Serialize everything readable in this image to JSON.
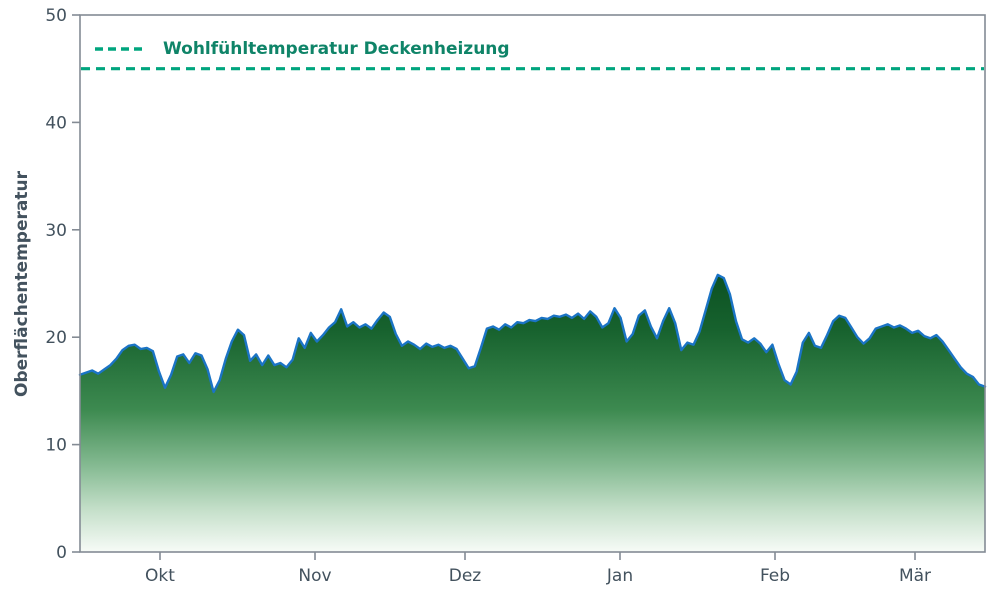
{
  "colors": {
    "background": "#ffffff",
    "axis_text": "#43525e",
    "legend_text": "#0f8468",
    "spine": "#848b94",
    "gradient_stops": [
      "#0a4f21",
      "#17622e",
      "#3d8a50",
      "#86bb93",
      "#c4dfc9",
      "#f7fbf7"
    ]
  },
  "chart_data": {
    "type": "area",
    "title": "",
    "xlabel": "",
    "ylabel": "Oberflächentemperatur",
    "ylim": [
      0,
      50
    ],
    "yticks": [
      0,
      10,
      20,
      30,
      40,
      50
    ],
    "xlim_days": [
      0,
      181
    ],
    "xticks": [
      {
        "label": "Okt",
        "day": 16
      },
      {
        "label": "Nov",
        "day": 47
      },
      {
        "label": "Dez",
        "day": 77
      },
      {
        "label": "Jan",
        "day": 108
      },
      {
        "label": "Feb",
        "day": 139
      },
      {
        "label": "Mär",
        "day": 167
      }
    ],
    "grid": false,
    "legend_position": "upper left",
    "threshold": {
      "label": "Wohlfühltemperatur Deckenheizung",
      "value": 45,
      "color": "#00a57e",
      "style": "dashed"
    },
    "series": [
      {
        "name": "Oberflächentemperatur",
        "color": "#1b74c5",
        "fill": "green-white-gradient",
        "values": [
          16.5,
          16.7,
          16.9,
          16.6,
          17.0,
          17.4,
          18.0,
          18.8,
          19.2,
          19.3,
          18.9,
          19.0,
          18.7,
          16.8,
          15.3,
          16.5,
          18.2,
          18.4,
          17.6,
          18.5,
          18.3,
          17.0,
          14.9,
          16.0,
          18.0,
          19.6,
          20.7,
          20.2,
          17.8,
          18.4,
          17.4,
          18.3,
          17.4,
          17.6,
          17.2,
          17.9,
          19.9,
          19.0,
          20.4,
          19.6,
          20.2,
          20.9,
          21.4,
          22.6,
          21.0,
          21.4,
          20.9,
          21.2,
          20.8,
          21.6,
          22.3,
          21.9,
          20.3,
          19.2,
          19.6,
          19.3,
          18.9,
          19.4,
          19.1,
          19.3,
          19.0,
          19.2,
          18.9,
          18.0,
          17.1,
          17.3,
          19.0,
          20.8,
          21.0,
          20.7,
          21.2,
          20.9,
          21.4,
          21.3,
          21.6,
          21.5,
          21.8,
          21.7,
          22.0,
          21.9,
          22.1,
          21.8,
          22.2,
          21.7,
          22.4,
          21.9,
          20.9,
          21.3,
          22.7,
          21.8,
          19.6,
          20.3,
          22.0,
          22.5,
          21.0,
          19.9,
          21.5,
          22.7,
          21.3,
          18.8,
          19.5,
          19.3,
          20.5,
          22.5,
          24.5,
          25.8,
          25.5,
          24.0,
          21.5,
          19.8,
          19.5,
          19.9,
          19.4,
          18.6,
          19.3,
          17.5,
          16.0,
          15.6,
          16.8,
          19.5,
          20.4,
          19.2,
          19.0,
          20.2,
          21.5,
          22.0,
          21.8,
          20.9,
          20.0,
          19.4,
          19.9,
          20.8,
          21.0,
          21.2,
          20.9,
          21.1,
          20.8,
          20.4,
          20.6,
          20.1,
          19.9,
          20.2,
          19.6,
          18.8,
          18.0,
          17.2,
          16.6,
          16.3,
          15.6,
          15.4
        ]
      }
    ]
  }
}
